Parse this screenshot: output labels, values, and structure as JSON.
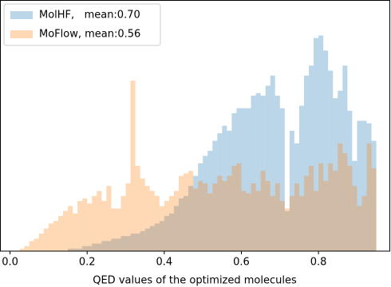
{
  "chart_data": {
    "type": "histogram",
    "xlabel": "QED values of the optimized molecules",
    "bins": [
      0.025,
      0.0375,
      0.05,
      0.0625,
      0.075,
      0.0875,
      0.1,
      0.1125,
      0.125,
      0.1375,
      0.15,
      0.1625,
      0.175,
      0.1875,
      0.2,
      0.2125,
      0.225,
      0.2375,
      0.25,
      0.2625,
      0.275,
      0.2875,
      0.3,
      0.3125,
      0.325,
      0.3375,
      0.35,
      0.3625,
      0.375,
      0.3875,
      0.4,
      0.4125,
      0.425,
      0.4375,
      0.45,
      0.4625,
      0.475,
      0.4875,
      0.5,
      0.5125,
      0.525,
      0.5375,
      0.55,
      0.5625,
      0.575,
      0.5875,
      0.6,
      0.6125,
      0.625,
      0.6375,
      0.65,
      0.6625,
      0.675,
      0.6875,
      0.7,
      0.7125,
      0.725,
      0.7375,
      0.75,
      0.7625,
      0.775,
      0.7875,
      0.8,
      0.8125,
      0.825,
      0.8375,
      0.85,
      0.8625,
      0.875,
      0.8875,
      0.9,
      0.9125,
      0.925,
      0.9375,
      0.95
    ],
    "series": [
      {
        "name": "MolHF,   mean:0.70",
        "color": "#1f77b4",
        "values": [
          0,
          0,
          0,
          0,
          0,
          0,
          0,
          0,
          0,
          0,
          1,
          1,
          1,
          2,
          2,
          3,
          3,
          4,
          4,
          5,
          5,
          6,
          6,
          7,
          7,
          8,
          9,
          10,
          11,
          12,
          14,
          15,
          18,
          21,
          22,
          26,
          30,
          35,
          38,
          40,
          44,
          47,
          50,
          48,
          55,
          57,
          57,
          57,
          62,
          63,
          62,
          66,
          70,
          62,
          57,
          16,
          48,
          43,
          58,
          70,
          74,
          85,
          86,
          80,
          72,
          61,
          64,
          74,
          56,
          36,
          52,
          52,
          51,
          44
        ]
      },
      {
        "name": "MoFlow, mean:0.56",
        "color": "#ff7f0e",
        "values": [
          1,
          2,
          4,
          5,
          7,
          9,
          11,
          12,
          14,
          16,
          18,
          15,
          20,
          21,
          19,
          22,
          24,
          20,
          26,
          17,
          17,
          22,
          27,
          68,
          34,
          29,
          26,
          24,
          22,
          18,
          20,
          22,
          24,
          30,
          31,
          32,
          25,
          28,
          27,
          23,
          27,
          30,
          28,
          30,
          34,
          35,
          24,
          23,
          27,
          24,
          32,
          28,
          22,
          27,
          20,
          17,
          22,
          27,
          22,
          30,
          34,
          24,
          35,
          28,
          35,
          32,
          43,
          39,
          34,
          26,
          18,
          22,
          43,
          33
        ]
      }
    ],
    "xlim": [
      -0.025,
      0.985
    ],
    "xticks": [
      {
        "value": 0,
        "label": "0.0"
      },
      0.2,
      0.4,
      0.6,
      0.8
    ],
    "ylim": [
      0,
      100
    ],
    "opacity": 0.3,
    "legend": "upper left"
  }
}
